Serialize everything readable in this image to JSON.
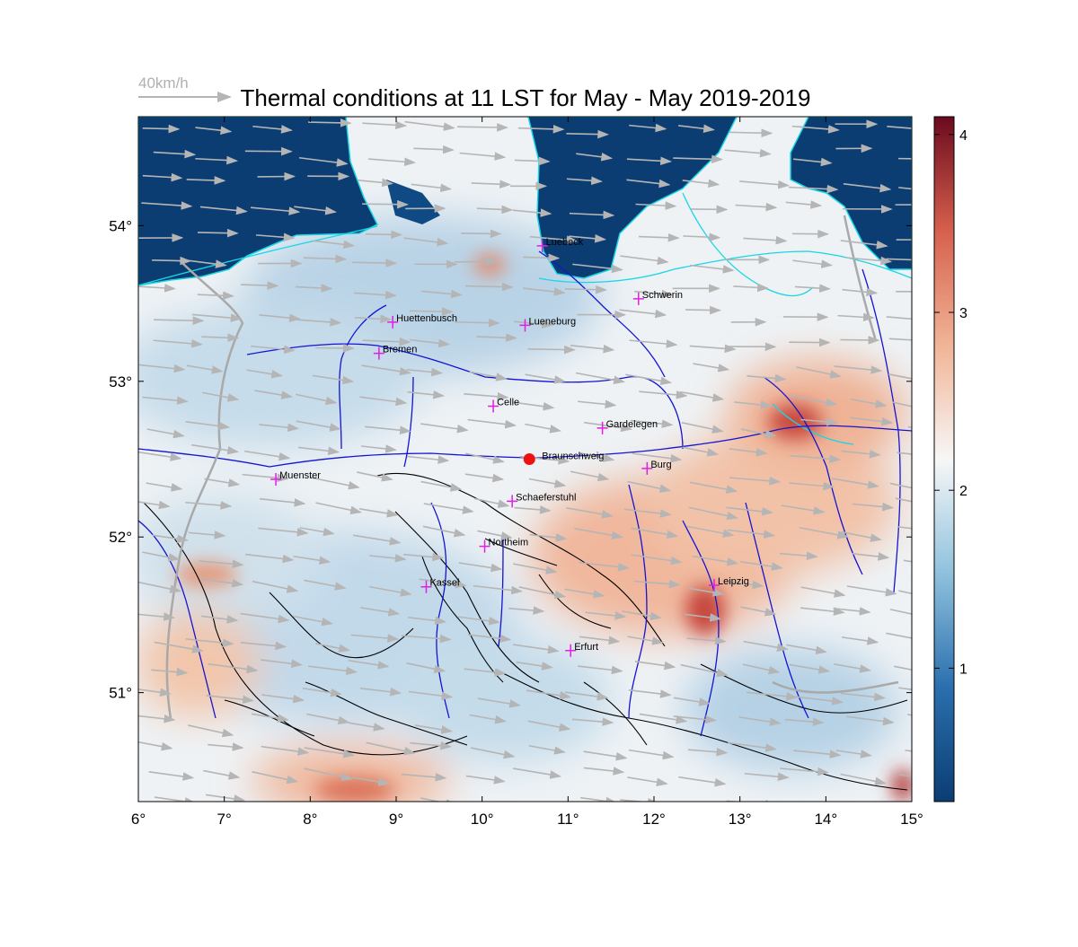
{
  "title": "Thermal conditions at 11 LST for May - May  2019-2019",
  "wind_scale_label": "40km/h",
  "lon_ticks": [
    "6°",
    "7°",
    "8°",
    "9°",
    "10°",
    "11°",
    "12°",
    "13°",
    "14°",
    "15°"
  ],
  "lat_ticks": [
    "51°",
    "52°",
    "53°",
    "54°"
  ],
  "colorbar": {
    "ticks": [
      "1",
      "2",
      "3",
      "4"
    ],
    "tick_values": [
      1,
      2,
      3,
      4
    ],
    "min": 0.25,
    "max": 4.1,
    "colors": [
      "#0b3d73",
      "#2a6fae",
      "#8fc1dd",
      "#f7f7f7",
      "#f1b497",
      "#d6604d",
      "#6b0a1e"
    ]
  },
  "extent": {
    "lon_min": 6.0,
    "lon_max": 15.0,
    "lat_min": 50.3,
    "lat_max": 54.7
  },
  "cities": [
    {
      "name": "Luebeck",
      "lon": 10.7,
      "lat": 53.87
    },
    {
      "name": "Schwerin",
      "lon": 11.82,
      "lat": 53.53
    },
    {
      "name": "Huettenbusch",
      "lon": 8.96,
      "lat": 53.38
    },
    {
      "name": "Lueneburg",
      "lon": 10.5,
      "lat": 53.36
    },
    {
      "name": "Bremen",
      "lon": 8.8,
      "lat": 53.18
    },
    {
      "name": "Celle",
      "lon": 10.13,
      "lat": 52.84
    },
    {
      "name": "Gardelegen",
      "lon": 11.4,
      "lat": 52.7
    },
    {
      "name": "Burg",
      "lon": 11.92,
      "lat": 52.44
    },
    {
      "name": "Muenster",
      "lon": 7.6,
      "lat": 52.37
    },
    {
      "name": "Schaeferstuhl",
      "lon": 10.35,
      "lat": 52.23
    },
    {
      "name": "Northeim",
      "lon": 10.03,
      "lat": 51.94
    },
    {
      "name": "Kassel",
      "lon": 9.35,
      "lat": 51.68
    },
    {
      "name": "Leipzig",
      "lon": 12.7,
      "lat": 51.69
    },
    {
      "name": "Erfurt",
      "lon": 11.03,
      "lat": 51.27
    }
  ],
  "site": {
    "name": "Braunschweig",
    "lon": 10.55,
    "lat": 52.5
  },
  "colors": {
    "sea": "#0b3d73",
    "coast": "#19d6e6",
    "rivers": "#1414d2",
    "contours": "#000000",
    "wind": "#b5b5b5",
    "city_marker": "#e020e0",
    "site_marker": "#ee1111"
  }
}
